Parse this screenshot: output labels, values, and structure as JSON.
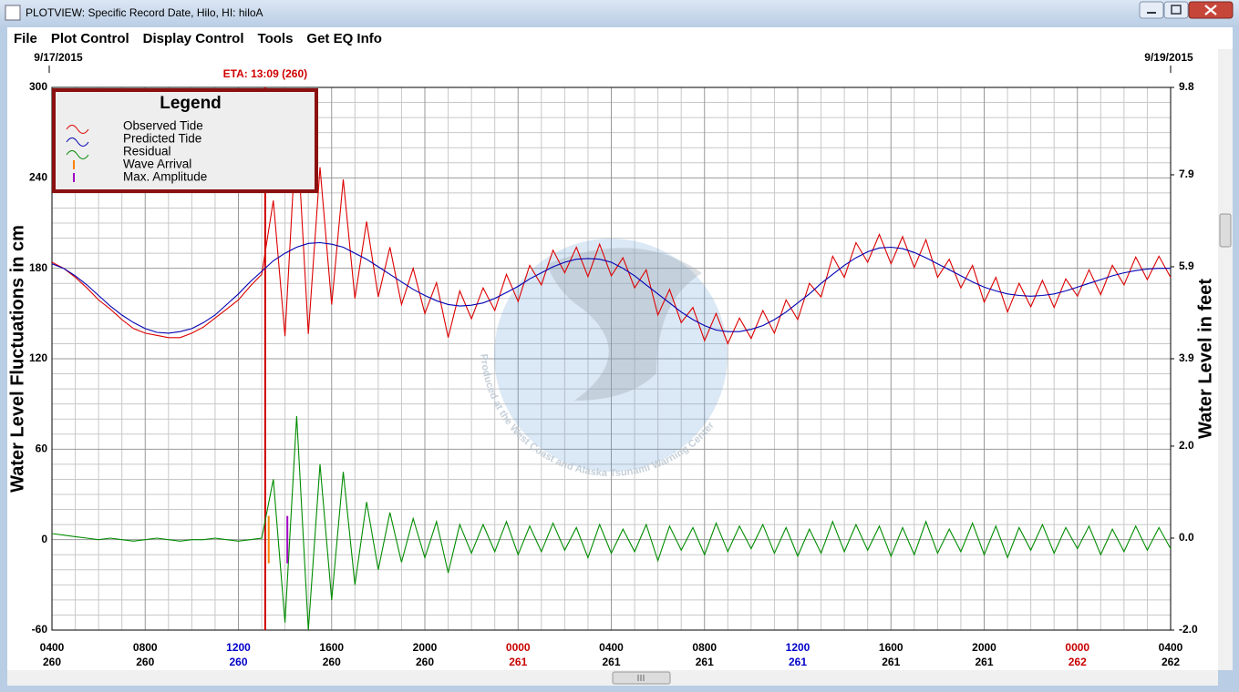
{
  "window": {
    "title": "PLOTVIEW: Specific Record Date, Hilo, HI: hiloA",
    "menu": [
      "File",
      "Plot Control",
      "Display Control",
      "Tools",
      "Get EQ Info"
    ]
  },
  "chart_data": {
    "type": "line",
    "start_date": "9/17/2015",
    "end_date": "9/19/2015",
    "legend_title": "Legend",
    "legend": "upper left",
    "grid": true,
    "ylabel": "Water Level Fluctuations in cm",
    "y2label": "Water Level in feet",
    "watermark": "Produced at the West Coast and Alaska Tsunami Warning Center",
    "eta": {
      "label": "ETA: 13:09 (260)",
      "x": 9.15,
      "color": "#d00000"
    },
    "xlim": [
      0,
      48
    ],
    "xticks": [
      {
        "value": 0,
        "label": "0400",
        "day": "260",
        "color": "#000000"
      },
      {
        "value": 4,
        "label": "0800",
        "day": "260",
        "color": "#000000"
      },
      {
        "value": 8,
        "label": "1200",
        "day": "260",
        "color": "#0000c8"
      },
      {
        "value": 12,
        "label": "1600",
        "day": "260",
        "color": "#000000"
      },
      {
        "value": 16,
        "label": "2000",
        "day": "260",
        "color": "#000000"
      },
      {
        "value": 20,
        "label": "0000",
        "day": "261",
        "color": "#c80000"
      },
      {
        "value": 24,
        "label": "0400",
        "day": "261",
        "color": "#000000"
      },
      {
        "value": 28,
        "label": "0800",
        "day": "261",
        "color": "#000000"
      },
      {
        "value": 32,
        "label": "1200",
        "day": "261",
        "color": "#0000c8"
      },
      {
        "value": 36,
        "label": "1600",
        "day": "261",
        "color": "#000000"
      },
      {
        "value": 40,
        "label": "2000",
        "day": "261",
        "color": "#000000"
      },
      {
        "value": 44,
        "label": "0000",
        "day": "262",
        "color": "#c80000"
      },
      {
        "value": 48,
        "label": "0400",
        "day": "262",
        "color": "#000000"
      }
    ],
    "ylim": [
      -60,
      300
    ],
    "yticks": [
      -60,
      0,
      60,
      120,
      180,
      240,
      300
    ],
    "y2lim": [
      -2,
      9.8
    ],
    "y2ticks": [
      {
        "value": -2,
        "label": "-2.0"
      },
      {
        "value": 0,
        "label": "0.0"
      },
      {
        "value": 2,
        "label": "2.0"
      },
      3.9,
      5.9,
      7.9,
      9.8
    ],
    "x": [
      0,
      0.5,
      1,
      1.5,
      2,
      2.5,
      3,
      3.5,
      4,
      4.5,
      5,
      5.5,
      6,
      6.5,
      7,
      7.5,
      8,
      8.5,
      9,
      9.5,
      10,
      10.5,
      11,
      11.5,
      12,
      12.5,
      13,
      13.5,
      14,
      14.5,
      15,
      15.5,
      16,
      16.5,
      17,
      17.5,
      18,
      18.5,
      19,
      19.5,
      20,
      20.5,
      21,
      21.5,
      22,
      22.5,
      23,
      23.5,
      24,
      24.5,
      25,
      25.5,
      26,
      26.5,
      27,
      27.5,
      28,
      28.5,
      29,
      29.5,
      30,
      30.5,
      31,
      31.5,
      32,
      32.5,
      33,
      33.5,
      34,
      34.5,
      35,
      35.5,
      36,
      36.5,
      37,
      37.5,
      38,
      38.5,
      39,
      39.5,
      40,
      40.5,
      41,
      41.5,
      42,
      42.5,
      43,
      43.5,
      44,
      44.5,
      45,
      45.5,
      46,
      46.5,
      47,
      47.5,
      48
    ],
    "series": [
      {
        "name": "Observed Tide",
        "color": "#dd0000",
        "values": [
          184,
          180,
          174,
          167,
          159,
          153,
          146,
          140,
          137,
          135.5,
          134,
          134,
          137,
          141,
          147,
          153,
          159,
          168,
          176,
          225,
          135,
          276,
          136.5,
          247,
          156,
          239,
          160,
          211,
          161,
          194,
          156,
          180,
          150,
          170.5,
          134,
          165,
          146.5,
          167,
          152,
          176,
          158,
          182,
          169,
          192,
          177,
          194,
          174.5,
          196,
          175,
          187,
          167,
          179,
          149,
          166,
          144,
          154,
          132,
          150,
          130,
          147,
          133.5,
          152,
          137,
          159,
          146,
          170,
          161,
          188,
          174,
          197,
          184,
          202.5,
          183,
          201,
          180.5,
          199,
          174,
          186,
          167,
          182,
          157.5,
          174,
          151,
          170,
          154.5,
          172,
          154,
          173,
          161.5,
          179,
          162.5,
          182,
          169,
          187.5,
          172.5,
          188,
          174
        ]
      },
      {
        "name": "Predicted Tide",
        "color": "#0000b4",
        "values": [
          183,
          180,
          175,
          169,
          162,
          155,
          149,
          144,
          140,
          137.5,
          137,
          138,
          140,
          144,
          149,
          156,
          163,
          171,
          178,
          185,
          190,
          194,
          196.5,
          197,
          196,
          194,
          190,
          186,
          181,
          176,
          171,
          166,
          162,
          158.5,
          156,
          155,
          155.5,
          157,
          160,
          164,
          168,
          173,
          177,
          181,
          184,
          186,
          186.5,
          186,
          184,
          180,
          175,
          169,
          163,
          157,
          151,
          146,
          142,
          139,
          138,
          138,
          139.5,
          142,
          146,
          151,
          157,
          163,
          170,
          176,
          182,
          187,
          191,
          193.5,
          194,
          193,
          190.5,
          187,
          183,
          179,
          175,
          171,
          167.5,
          165,
          163,
          162,
          161.5,
          162,
          163,
          165,
          167.5,
          170,
          172.5,
          175,
          177,
          178.5,
          179.5,
          180,
          180
        ]
      },
      {
        "name": "Residual",
        "color": "#008c00",
        "values": [
          4,
          3,
          2,
          1,
          0,
          1,
          0,
          -1,
          0,
          1,
          0,
          -1,
          0,
          0,
          1,
          0,
          -1,
          0,
          1,
          40,
          -55,
          82,
          -60,
          50,
          -40,
          45,
          -30,
          25,
          -20,
          18,
          -15,
          14,
          -12,
          12,
          -22,
          10,
          -9,
          10,
          -8,
          12,
          -10,
          9,
          -8,
          11,
          -7,
          8,
          -12,
          10,
          -9,
          7,
          -8,
          10,
          -14,
          9,
          -7,
          8,
          -10,
          11,
          -8,
          9,
          -6,
          10,
          -9,
          8,
          -11,
          7,
          -9,
          12,
          -8,
          10,
          -7,
          9,
          -11,
          8,
          -10,
          12,
          -9,
          7,
          -8,
          11,
          -10,
          9,
          -12,
          8,
          -7,
          10,
          -9,
          8,
          -6,
          9,
          -10,
          7,
          -8,
          9,
          -7,
          8,
          -6
        ]
      }
    ],
    "markers": [
      {
        "name": "Wave Arrival",
        "color": "#ff8000",
        "x": 9.3
      },
      {
        "name": "Max. Amplitude",
        "color": "#a000c0",
        "x": 10.1
      }
    ]
  }
}
